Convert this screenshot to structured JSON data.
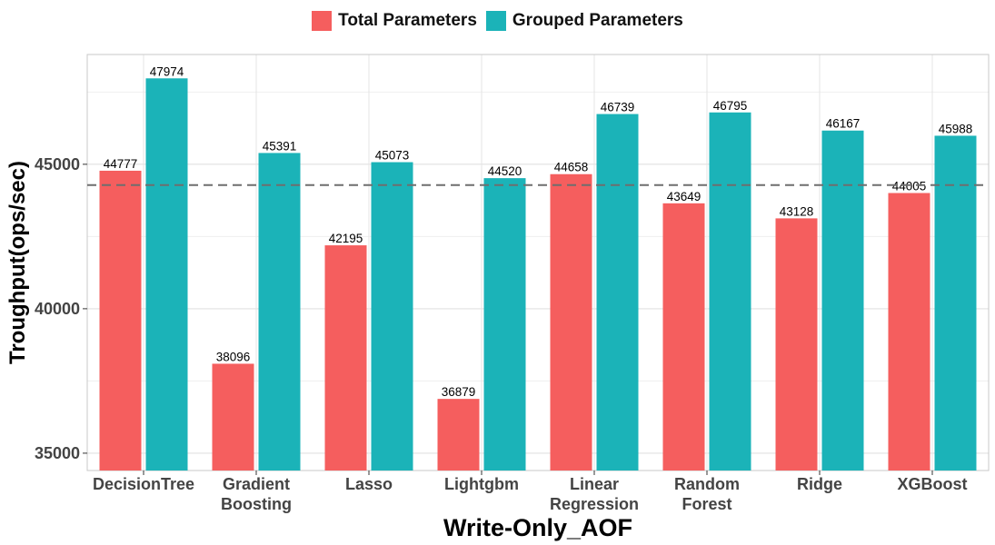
{
  "legend": [
    {
      "label": "Total Parameters",
      "color": "#F55E5E"
    },
    {
      "label": "Grouped Parameters",
      "color": "#1BB3B8"
    }
  ],
  "chart_data": {
    "type": "bar",
    "categories": [
      [
        "DecisionTree"
      ],
      [
        "Gradient",
        "Boosting"
      ],
      [
        "Lasso"
      ],
      [
        "Lightgbm"
      ],
      [
        "Linear",
        "Regression"
      ],
      [
        "Random",
        "Forest"
      ],
      [
        "Ridge"
      ],
      [
        "XGBoost"
      ]
    ],
    "series": [
      {
        "name": "Total Parameters",
        "color": "#F55E5E",
        "values": [
          44777,
          38096,
          42195,
          36879,
          44658,
          43649,
          43128,
          44005
        ]
      },
      {
        "name": "Grouped Parameters",
        "color": "#1BB3B8",
        "values": [
          47974,
          45391,
          45073,
          44520,
          46739,
          46795,
          46167,
          45988
        ]
      }
    ],
    "xlabel": "Write-Only_AOF",
    "ylabel": "Troughput(ops/sec)",
    "ylim": [
      34400,
      48800
    ],
    "yticks": [
      35000,
      40000,
      45000
    ],
    "reference_line": 44280,
    "grid": true,
    "legend_position": "top"
  }
}
